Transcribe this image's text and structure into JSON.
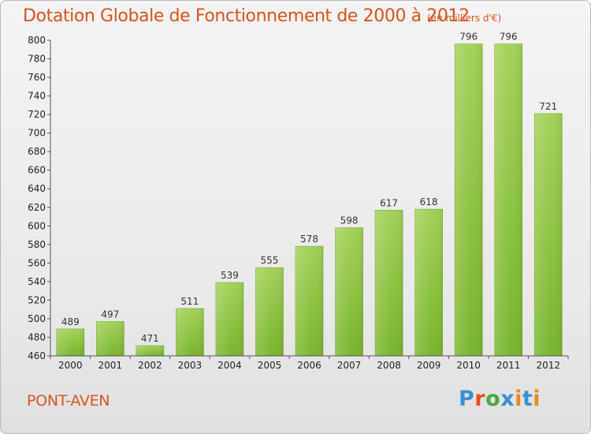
{
  "chart_data": {
    "type": "bar",
    "title": "Dotation Globale de Fonctionnement de 2000 à 2012",
    "subtitle": "(en milliers d'€)",
    "categories": [
      "2000",
      "2001",
      "2002",
      "2003",
      "2004",
      "2005",
      "2006",
      "2007",
      "2008",
      "2009",
      "2010",
      "2011",
      "2012"
    ],
    "values": [
      489,
      497,
      471,
      511,
      539,
      555,
      578,
      598,
      617,
      618,
      796,
      796,
      721
    ],
    "ylim": [
      460,
      800
    ],
    "yticks": [
      460,
      480,
      500,
      520,
      540,
      560,
      580,
      600,
      620,
      640,
      660,
      680,
      700,
      720,
      740,
      760,
      780,
      800
    ],
    "grid": false,
    "data_labels": true,
    "bar_color": "#7ab52e",
    "bar_color_light": "#a2d257"
  },
  "footer": {
    "town": "PONT-AVEN",
    "logo_text": "Proxiti",
    "logo_colors": [
      "#3b8fd4",
      "#e3501f",
      "#4aa83e",
      "#3b8fd4",
      "#e68a1e",
      "#3b8fd4",
      "#e68a1e"
    ]
  },
  "colors": {
    "title": "#d9541e",
    "axis": "#333333"
  }
}
